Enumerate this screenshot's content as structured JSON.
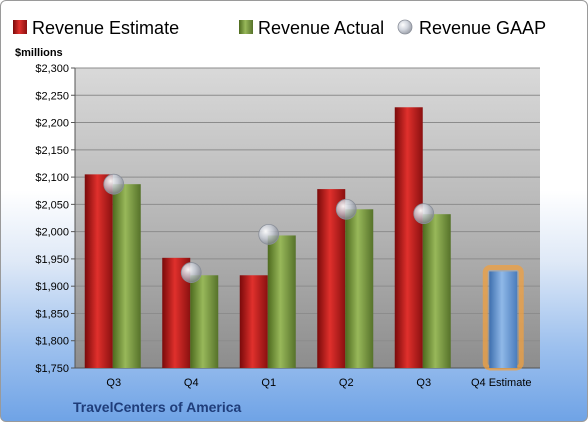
{
  "chart_data": {
    "type": "bar",
    "unit_label": "$millions",
    "footer": "TravelCenters of America",
    "categories": [
      "Q3",
      "Q4",
      "Q1",
      "Q2",
      "Q3",
      "Q4 Estimate"
    ],
    "ylim": [
      1750,
      2300
    ],
    "ytick_step": 50,
    "ytick_labels": [
      "$1,750",
      "$1,800",
      "$1,850",
      "$1,900",
      "$1,950",
      "$2,000",
      "$2,050",
      "$2,100",
      "$2,150",
      "$2,200",
      "$2,250",
      "$2,300"
    ],
    "grid": true,
    "legend_position": "top",
    "series": [
      {
        "name": "Revenue Estimate",
        "kind": "bar",
        "color": "#c81e1e",
        "values": [
          2105,
          1952,
          1920,
          2078,
          2228,
          null
        ]
      },
      {
        "name": "Revenue Actual",
        "kind": "bar",
        "color": "#7a9a3a",
        "values": [
          2087,
          1920,
          1993,
          2041,
          2032,
          null
        ]
      },
      {
        "name": "Revenue GAAP",
        "kind": "marker",
        "color": "#c8cdd6",
        "values": [
          2087,
          1925,
          1995,
          2041,
          2033,
          null
        ]
      },
      {
        "name": "Q4 Estimate",
        "kind": "bar",
        "color": "#6f9fd8",
        "highlight": "#f0a040",
        "values": [
          null,
          null,
          null,
          null,
          null,
          1927
        ]
      }
    ]
  }
}
